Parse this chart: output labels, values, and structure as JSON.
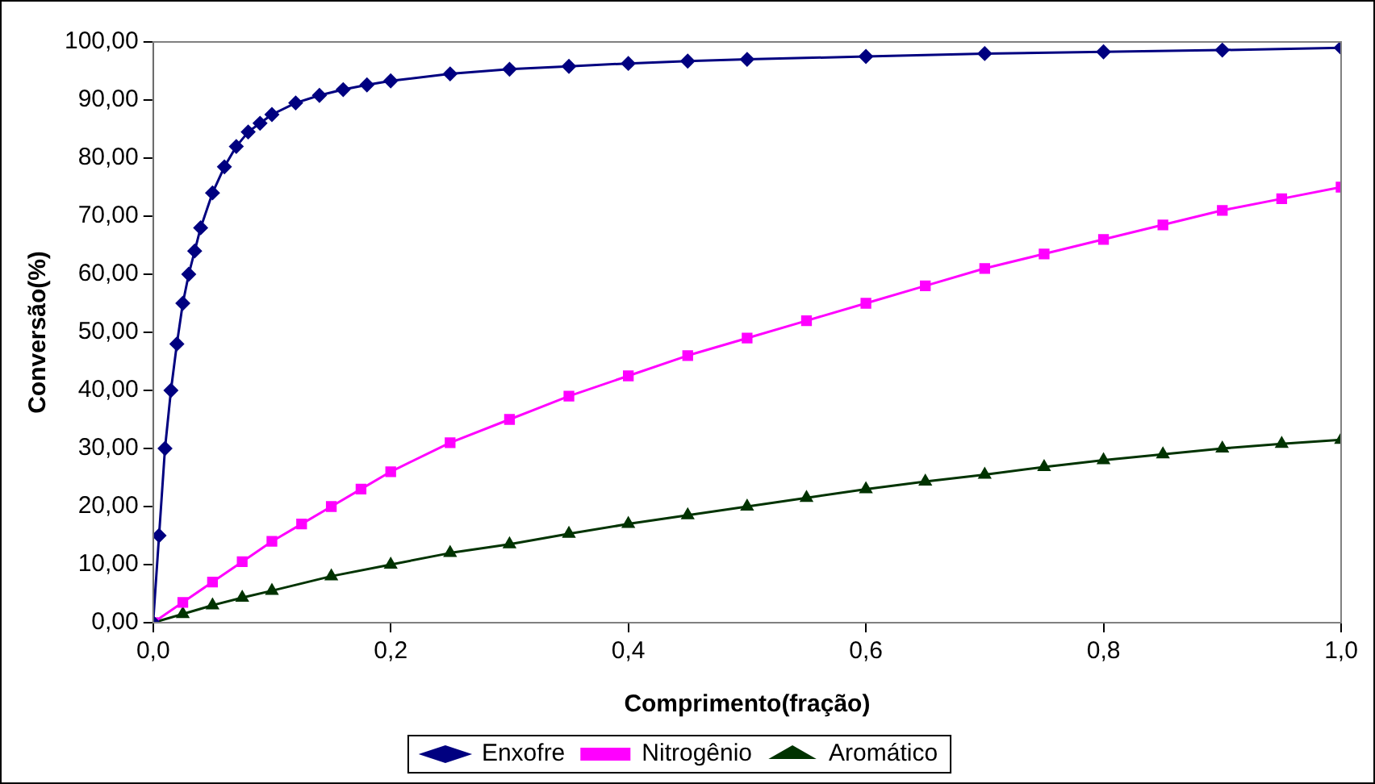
{
  "chart_data": {
    "type": "line",
    "xlabel": "Comprimento(fração)",
    "ylabel": "Conversão(%)",
    "xlim": [
      0,
      1
    ],
    "xticks": [
      {
        "value": 0,
        "label": "0,0"
      },
      {
        "value": 0.2,
        "label": "0,2"
      },
      {
        "value": 0.4,
        "label": "0,4"
      },
      {
        "value": 0.6,
        "label": "0,6"
      },
      {
        "value": 0.8,
        "label": "0,8"
      },
      {
        "value": 1,
        "label": "1,0"
      }
    ],
    "ylim": [
      0,
      100
    ],
    "yticks": [
      {
        "value": 0,
        "label": "0,00"
      },
      {
        "value": 10,
        "label": "10,00"
      },
      {
        "value": 20,
        "label": "20,00"
      },
      {
        "value": 30,
        "label": "30,00"
      },
      {
        "value": 40,
        "label": "40,00"
      },
      {
        "value": 50,
        "label": "50,00"
      },
      {
        "value": 60,
        "label": "60,00"
      },
      {
        "value": 70,
        "label": "70,00"
      },
      {
        "value": 80,
        "label": "80,00"
      },
      {
        "value": 90,
        "label": "90,00"
      },
      {
        "value": 100,
        "label": "100,00"
      }
    ],
    "grid": false,
    "legend": "bottom",
    "series": [
      {
        "name": "Enxofre",
        "color": "#000080",
        "marker": "diamond",
        "x": [
          0,
          0.005,
          0.01,
          0.015,
          0.02,
          0.025,
          0.03,
          0.035,
          0.04,
          0.05,
          0.06,
          0.07,
          0.08,
          0.09,
          0.1,
          0.12,
          0.14,
          0.16,
          0.18,
          0.2,
          0.25,
          0.3,
          0.35,
          0.4,
          0.45,
          0.5,
          0.6,
          0.7,
          0.8,
          0.9,
          1.0
        ],
        "values": [
          0,
          15,
          30,
          40,
          48,
          55,
          60,
          64,
          68,
          74,
          78.5,
          82,
          84.5,
          86,
          87.5,
          89.5,
          90.8,
          91.8,
          92.6,
          93.3,
          94.5,
          95.3,
          95.8,
          96.3,
          96.7,
          97,
          97.5,
          98,
          98.3,
          98.6,
          99
        ]
      },
      {
        "name": "Nitrogênio",
        "color": "#ff00ff",
        "marker": "square",
        "x": [
          0,
          0.025,
          0.05,
          0.075,
          0.1,
          0.125,
          0.15,
          0.175,
          0.2,
          0.25,
          0.3,
          0.35,
          0.4,
          0.45,
          0.5,
          0.55,
          0.6,
          0.65,
          0.7,
          0.75,
          0.8,
          0.85,
          0.9,
          0.95,
          1.0
        ],
        "values": [
          0,
          3.5,
          7,
          10.5,
          14,
          17,
          20,
          23,
          26,
          31,
          35,
          39,
          42.5,
          46,
          49,
          52,
          55,
          58,
          61,
          63.5,
          66,
          68.5,
          71,
          73,
          75
        ]
      },
      {
        "name": "Aromático",
        "color": "#003300",
        "marker": "triangle",
        "x": [
          0,
          0.025,
          0.05,
          0.075,
          0.1,
          0.15,
          0.2,
          0.25,
          0.3,
          0.35,
          0.4,
          0.45,
          0.5,
          0.55,
          0.6,
          0.65,
          0.7,
          0.75,
          0.8,
          0.85,
          0.9,
          0.95,
          1.0
        ],
        "values": [
          0,
          1.5,
          3,
          4.3,
          5.5,
          8,
          10,
          12,
          13.5,
          15.3,
          17,
          18.5,
          20,
          21.5,
          23,
          24.3,
          25.5,
          26.8,
          28,
          29,
          30,
          30.8,
          31.5
        ]
      }
    ]
  }
}
